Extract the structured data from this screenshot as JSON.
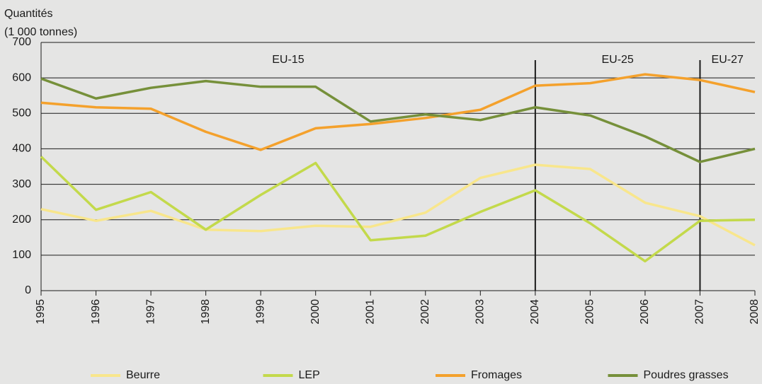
{
  "chart_data": {
    "type": "line",
    "y_label": [
      "Quantités",
      "(1 000 tonnes)"
    ],
    "x": [
      1995,
      1996,
      1997,
      1998,
      1999,
      2000,
      2001,
      2002,
      2003,
      2004,
      2005,
      2006,
      2007,
      2008
    ],
    "xlim": [
      1995,
      2008
    ],
    "xticks": [
      1995,
      1996,
      1997,
      1998,
      1999,
      2000,
      2001,
      2002,
      2003,
      2004,
      2005,
      2006,
      2007,
      2008
    ],
    "ylim": [
      0,
      700
    ],
    "yticks": [
      0,
      100,
      200,
      300,
      400,
      500,
      600,
      700
    ],
    "grid": true,
    "legend": "bottom",
    "regions": [
      {
        "label": "EU-15",
        "start": 1995,
        "end": 2004
      },
      {
        "label": "EU-25",
        "start": 2004,
        "end": 2007
      },
      {
        "label": "EU-27",
        "start": 2007,
        "end": 2008
      }
    ],
    "series": [
      {
        "name": "Beurre",
        "color": "#f8e68c",
        "values": [
          230,
          197,
          225,
          172,
          168,
          183,
          180,
          220,
          318,
          355,
          343,
          248,
          210,
          128
        ]
      },
      {
        "name": "LEP",
        "color": "#c3d94b",
        "values": [
          378,
          228,
          278,
          172,
          270,
          360,
          142,
          155,
          222,
          283,
          190,
          83,
          197,
          200
        ]
      },
      {
        "name": "Fromages",
        "color": "#f4a12c",
        "values": [
          530,
          517,
          513,
          448,
          397,
          458,
          470,
          487,
          510,
          578,
          585,
          610,
          594,
          560
        ]
      },
      {
        "name": "Poudres grasses",
        "color": "#76903a",
        "values": [
          598,
          542,
          572,
          591,
          575,
          575,
          477,
          497,
          481,
          517,
          494,
          435,
          363,
          400
        ]
      }
    ]
  }
}
